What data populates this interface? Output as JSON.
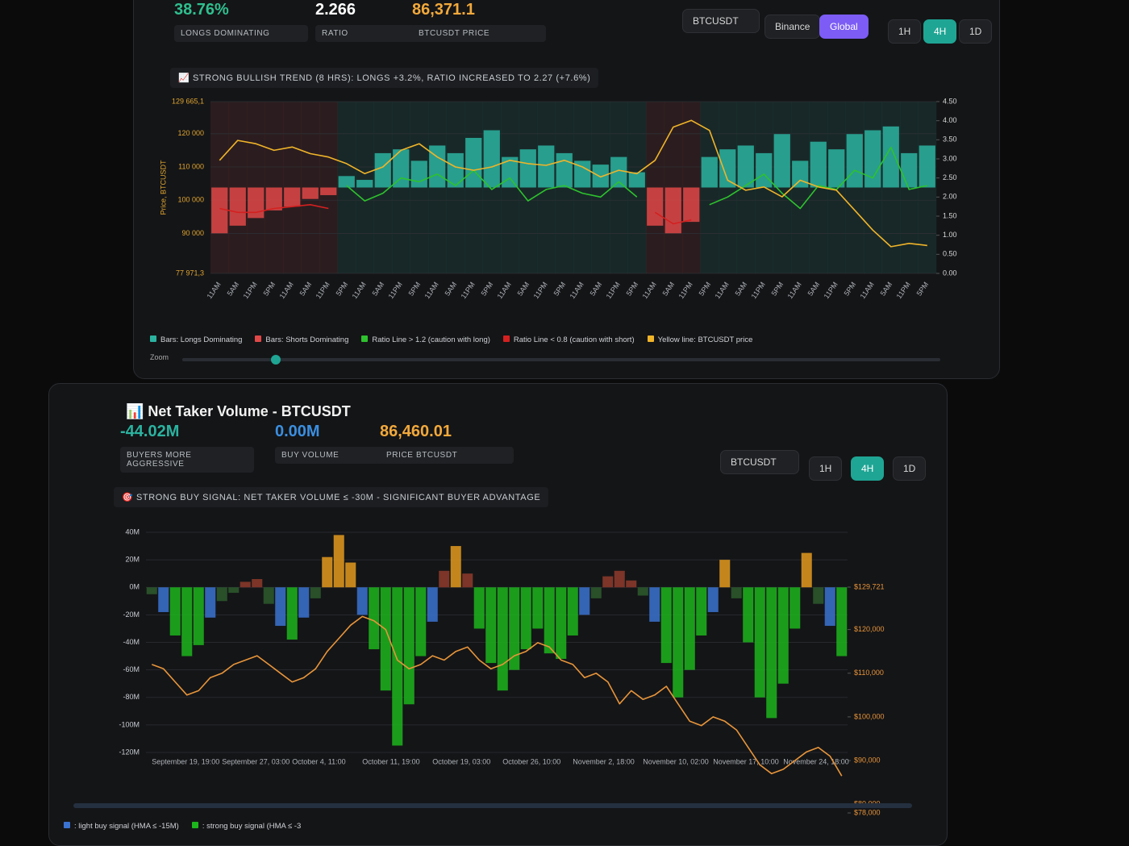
{
  "long_short_panel": {
    "stats": [
      {
        "value": "38.76%",
        "label": "LONGS DOMINATING",
        "color": "#2fbf8f"
      },
      {
        "value": "2.266",
        "label": "RATIO",
        "color": "#ffffff"
      },
      {
        "value": "86,371.1",
        "label": "BTCUSDT PRICE",
        "color": "#f2a93b"
      }
    ],
    "symbol": "BTCUSDT",
    "exchanges": [
      "Binance",
      "Global"
    ],
    "active_exchange": "Global",
    "intervals": [
      "1H",
      "4H",
      "1D"
    ],
    "active_interval": "4H",
    "alert": "📈 STRONG BULLISH TREND (8 HRS): LONGS +3.2%, RATIO INCREASED TO 2.27 (+7.6%)",
    "zoom_label": "Zoom",
    "chart_data": {
      "type": "combo",
      "y_axis_label": "Price, BTCUSDT",
      "grid": true,
      "zones": true,
      "categories": [
        "11AM",
        "5AM",
        "11PM",
        "5PM",
        "11AM",
        "5AM",
        "11PM",
        "5PM",
        "11AM",
        "5AM",
        "11PM",
        "5PM",
        "11AM",
        "5AM",
        "11PM",
        "5PM",
        "11AM",
        "5AM",
        "11PM",
        "5PM",
        "11AM",
        "5AM",
        "11PM",
        "5PM",
        "11AM",
        "5AM",
        "11PM",
        "5PM",
        "11AM",
        "5AM",
        "11PM",
        "5PM",
        "11AM",
        "5AM",
        "11PM",
        "5PM",
        "11AM",
        "5AM",
        "11PM",
        "5PM"
      ],
      "ylim": [
        77971.3,
        129665.1
      ],
      "yticks": [
        {
          "value": 129665.1,
          "label": "129 665,1"
        },
        {
          "value": 120000,
          "label": "120 000"
        },
        {
          "value": 110000,
          "label": "110 000"
        },
        {
          "value": 100000,
          "label": "100 000"
        },
        {
          "value": 90000,
          "label": "90 000"
        },
        {
          "value": 77971.3,
          "label": "77 971,3"
        }
      ],
      "y2lim": [
        0,
        4.5
      ],
      "y2ticks": [
        {
          "value": 4.5,
          "label": "4.50"
        },
        {
          "value": 4,
          "label": "4.00"
        },
        {
          "value": 3.5,
          "label": "3.50"
        },
        {
          "value": 3,
          "label": "3.00"
        },
        {
          "value": 2.5,
          "label": "2.50"
        },
        {
          "value": 2,
          "label": "2.00"
        },
        {
          "value": 1.5,
          "label": "1.50"
        },
        {
          "value": 1,
          "label": "1.00"
        },
        {
          "value": 0.5,
          "label": "0.50"
        },
        {
          "value": 0,
          "label": "0.00"
        }
      ],
      "series": [
        {
          "name": "Bars: Longs Dominating",
          "color": "#2bb3a0",
          "type": "bar",
          "axis": "y2",
          "values": [
            null,
            null,
            null,
            null,
            null,
            null,
            null,
            0.3,
            0.2,
            0.9,
            1.0,
            0.7,
            1.1,
            0.9,
            1.3,
            1.5,
            0.8,
            1.0,
            1.1,
            0.9,
            0.7,
            0.6,
            0.8,
            0.4,
            null,
            null,
            null,
            0.8,
            1.0,
            1.1,
            0.9,
            1.4,
            0.7,
            1.2,
            1.0,
            1.4,
            1.5,
            1.6,
            0.9,
            1.1
          ]
        },
        {
          "name": "Bars: Shorts Dominating",
          "color": "#e04848",
          "type": "bar",
          "axis": "y2",
          "values": [
            -1.2,
            -1.0,
            -0.8,
            -0.6,
            -0.5,
            -0.3,
            -0.2,
            null,
            null,
            null,
            null,
            null,
            null,
            null,
            null,
            null,
            null,
            null,
            null,
            null,
            null,
            null,
            null,
            null,
            -1.0,
            -1.2,
            -0.9,
            null,
            null,
            null,
            null,
            null,
            null,
            null,
            null,
            null,
            null,
            null,
            null,
            null
          ]
        },
        {
          "name": "Ratio Line > 1.2 (caution with long)",
          "color": "#2ec22e",
          "type": "line",
          "axis": "y2",
          "values": [
            null,
            null,
            null,
            null,
            null,
            null,
            null,
            2.3,
            1.9,
            2.1,
            2.5,
            2.4,
            2.6,
            2.3,
            2.7,
            2.2,
            2.5,
            1.9,
            2.2,
            2.3,
            2.1,
            2.0,
            2.4,
            2.0,
            null,
            null,
            null,
            1.8,
            2.0,
            2.3,
            2.6,
            2.1,
            1.7,
            2.3,
            2.2,
            2.7,
            2.5,
            3.3,
            2.2,
            2.3
          ]
        },
        {
          "name": "Ratio Line < 0.8 (caution with short)",
          "color": "#d42020",
          "type": "line",
          "axis": "y2",
          "values": [
            1.7,
            1.6,
            1.6,
            1.7,
            1.75,
            1.8,
            1.7,
            null,
            null,
            null,
            null,
            null,
            null,
            null,
            null,
            null,
            null,
            null,
            null,
            null,
            null,
            null,
            null,
            null,
            1.6,
            1.3,
            1.4,
            null,
            null,
            null,
            null,
            null,
            null,
            null,
            null,
            null,
            null,
            null,
            null,
            null
          ]
        },
        {
          "name": "Yellow line: BTCUSDT price",
          "color": "#f0b429",
          "type": "line",
          "values": [
            112000,
            118000,
            117000,
            115000,
            116000,
            114000,
            113000,
            111000,
            108000,
            110000,
            115000,
            117000,
            113000,
            110000,
            109000,
            110000,
            112000,
            111000,
            110500,
            112000,
            110000,
            107000,
            109000,
            108000,
            112000,
            122000,
            124000,
            121000,
            106000,
            103000,
            104000,
            101000,
            106000,
            104000,
            103000,
            97000,
            91000,
            86000,
            87000,
            86371.1
          ]
        }
      ]
    }
  },
  "taker_volume_panel": {
    "title": "📊 Net Taker Volume - BTCUSDT",
    "stats": [
      {
        "value": "-44.02M",
        "label": "BUYERS MORE AGGRESSIVE",
        "color": "#2bb3a0"
      },
      {
        "value": "0.00M",
        "label": "BUY VOLUME",
        "color": "#3b8fe0"
      },
      {
        "value": "86,460.01",
        "label": "PRICE BTCUSDT",
        "color": "#f2a93b"
      }
    ],
    "symbol": "BTCUSDT",
    "intervals": [
      "1H",
      "4H",
      "1D"
    ],
    "active_interval": "4H",
    "alert": "🎯 STRONG BUY SIGNAL: NET TAKER VOLUME ≤ -30M - SIGNIFICANT BUYER ADVANTAGE",
    "chart_data": {
      "type": "combo",
      "grid": true,
      "categories": [
        "September 19, 19:00",
        null,
        null,
        null,
        null,
        null,
        "September 27, 03:00",
        null,
        null,
        null,
        null,
        null,
        "October 4, 11:00",
        null,
        null,
        null,
        null,
        null,
        "October 11, 19:00",
        null,
        null,
        null,
        null,
        null,
        "October 19, 03:00",
        null,
        null,
        null,
        null,
        null,
        "October 26, 10:00",
        null,
        null,
        null,
        null,
        null,
        "November 2, 18:00",
        null,
        null,
        null,
        null,
        null,
        "November 10, 02:00",
        null,
        null,
        null,
        null,
        null,
        "November 17, 10:00",
        null,
        null,
        null,
        null,
        null,
        "November 24, 18:00",
        null,
        null,
        null,
        null,
        null
      ],
      "ylim": [
        -120,
        40
      ],
      "yticks": [
        {
          "value": 40,
          "label": "40M"
        },
        {
          "value": 20,
          "label": "20M"
        },
        {
          "value": 0,
          "label": "0M"
        },
        {
          "value": -20,
          "label": "-20M"
        },
        {
          "value": -40,
          "label": "-40M"
        },
        {
          "value": -60,
          "label": "-60M"
        },
        {
          "value": -80,
          "label": "-80M"
        },
        {
          "value": -100,
          "label": "-100M"
        },
        {
          "value": -120,
          "label": "-120M"
        }
      ],
      "y2lim": [
        78000,
        129721
      ],
      "y2ticks": [
        {
          "value": 129721,
          "label": "$129,721"
        },
        {
          "value": 120000,
          "label": "$120,000"
        },
        {
          "value": 110000,
          "label": "$110,000"
        },
        {
          "value": 100000,
          "label": "$100,000"
        },
        {
          "value": 90000,
          "label": "$90,000"
        },
        {
          "value": 80000,
          "label": "$80,000"
        },
        {
          "value": 78000,
          "label": "$78,000"
        }
      ],
      "series": [
        {
          "type": "bar",
          "values": [
            -5,
            -18,
            -35,
            -50,
            -42,
            -22,
            -10,
            -4,
            4,
            6,
            -12,
            -28,
            -38,
            -22,
            -8,
            22,
            38,
            18,
            -20,
            -45,
            -75,
            -115,
            -85,
            -50,
            -25,
            12,
            30,
            10,
            -30,
            -55,
            -75,
            -60,
            -45,
            -30,
            -48,
            -52,
            -35,
            -20,
            -8,
            8,
            12,
            5,
            -6,
            -25,
            -55,
            -80,
            -60,
            -35,
            -18,
            20,
            -8,
            -40,
            -80,
            -95,
            -70,
            -30,
            25,
            -12,
            -28,
            -50
          ],
          "colors": [
            "#2d5a2d",
            "#3a72d0",
            "#1cb51c",
            "#1cb51c",
            "#1cb51c",
            "#3a72d0",
            "#2d5a2d",
            "#2d5a2d",
            "#8e3b2c",
            "#8e3b2c",
            "#2d5a2d",
            "#3a72d0",
            "#1cb51c",
            "#3a72d0",
            "#2d5a2d",
            "#e39a1d",
            "#e39a1d",
            "#e39a1d",
            "#3a72d0",
            "#1cb51c",
            "#1cb51c",
            "#1cb51c",
            "#1cb51c",
            "#1cb51c",
            "#3a72d0",
            "#8e3b2c",
            "#e39a1d",
            "#8e3b2c",
            "#1cb51c",
            "#1cb51c",
            "#1cb51c",
            "#1cb51c",
            "#1cb51c",
            "#1cb51c",
            "#1cb51c",
            "#1cb51c",
            "#1cb51c",
            "#3a72d0",
            "#2d5a2d",
            "#8e3b2c",
            "#8e3b2c",
            "#8e3b2c",
            "#2d5a2d",
            "#3a72d0",
            "#1cb51c",
            "#1cb51c",
            "#1cb51c",
            "#1cb51c",
            "#3a72d0",
            "#e39a1d",
            "#2d5a2d",
            "#1cb51c",
            "#1cb51c",
            "#1cb51c",
            "#1cb51c",
            "#1cb51c",
            "#e39a1d",
            "#2d5a2d",
            "#3a72d0",
            "#1cb51c"
          ]
        },
        {
          "type": "line",
          "axis": "y2",
          "color": "#e8953a",
          "values": [
            112000,
            111000,
            108000,
            105000,
            106000,
            109000,
            110000,
            112000,
            113000,
            114000,
            112000,
            110000,
            108000,
            109000,
            111000,
            115000,
            118000,
            121000,
            123000,
            122000,
            120000,
            113000,
            111000,
            112000,
            114000,
            113000,
            115000,
            116000,
            113000,
            111000,
            112000,
            114000,
            115000,
            117000,
            116000,
            113000,
            112000,
            109000,
            110000,
            108000,
            103000,
            106000,
            104000,
            105000,
            107000,
            103000,
            99000,
            98000,
            100000,
            99000,
            97000,
            93000,
            89000,
            87000,
            88000,
            90000,
            92000,
            93000,
            91000,
            86460.01
          ]
        }
      ],
      "legend": [
        {
          "label": ": light buy signal (HMA ≤ -15M)",
          "color": "#3a72d0"
        },
        {
          "label": ": strong buy signal (HMA ≤ -3",
          "color": "#1cb51c"
        }
      ]
    }
  }
}
